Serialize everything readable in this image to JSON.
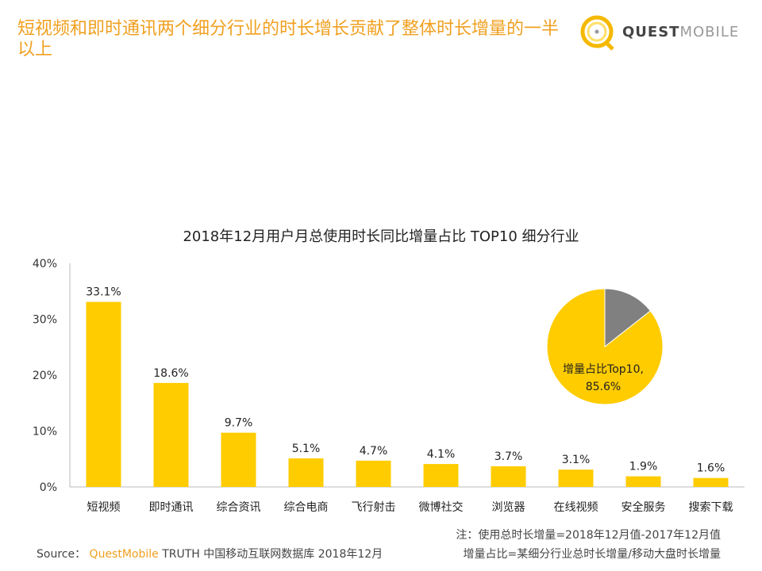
{
  "header": {
    "title": "短视频和即时通讯两个细分行业的时长增长贡献了整体时长增量的一半以上",
    "logo_bold": "QUEST",
    "logo_light": "MOBILE"
  },
  "chart_data": {
    "type": "bar",
    "title": "2018年12月用户月总使用时长同比增量占比 TOP10 细分行业",
    "categories": [
      "短视频",
      "即时通讯",
      "综合资讯",
      "综合电商",
      "飞行射击",
      "微博社交",
      "浏览器",
      "在线视频",
      "安全服务",
      "搜索下载"
    ],
    "values": [
      33.1,
      18.6,
      9.7,
      5.1,
      4.7,
      4.1,
      3.7,
      3.1,
      1.9,
      1.6
    ],
    "value_labels": [
      "33.1%",
      "18.6%",
      "9.7%",
      "5.1%",
      "4.7%",
      "4.1%",
      "3.7%",
      "3.1%",
      "1.9%",
      "1.6%"
    ],
    "ylim": [
      0,
      40
    ],
    "yticks": [
      "0%",
      "10%",
      "20%",
      "30%",
      "40%"
    ],
    "bar_color": "#ffcc00",
    "grid": false,
    "inset_pie": {
      "type": "pie",
      "slices": [
        {
          "label": "增量占比Top10,",
          "value_label": "85.6%",
          "value": 85.6,
          "color": "#ffcc00"
        },
        {
          "value": 14.4,
          "color": "#808080"
        }
      ]
    }
  },
  "footer": {
    "note1": "注：使用总时长增量=2018年12月值-2017年12月值",
    "note2": "增量占比=某细分行业总时长增量/移动大盘时长增量",
    "source_label": "Source：",
    "source_brand": "QuestMobile",
    "source_text": "TRUTH 中国移动互联网数据库 2018年12月"
  }
}
